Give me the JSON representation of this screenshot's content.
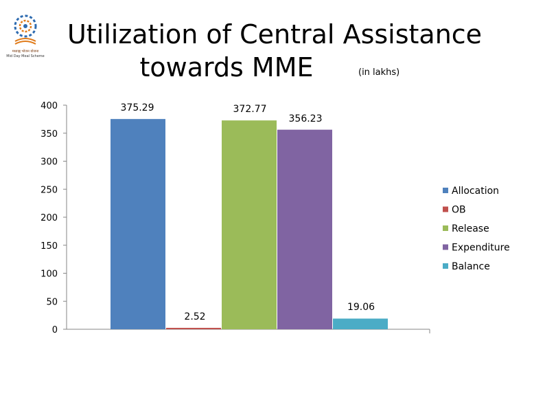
{
  "logo": {
    "line1": "मध्याह्न भोजन योजना",
    "line2": "Mid Day Meal Scheme"
  },
  "title": {
    "line1": "Utilization of Central Assistance",
    "line2": "towards MME",
    "unit": "(in lakhs)"
  },
  "chart_data": {
    "type": "bar",
    "title": "Utilization of Central Assistance towards MME",
    "unit": "(in lakhs)",
    "xlabel": "",
    "ylabel": "",
    "ylim": [
      0,
      400
    ],
    "yticks": [
      0,
      50,
      100,
      150,
      200,
      250,
      300,
      350,
      400
    ],
    "grid": false,
    "legend_position": "right",
    "series": [
      {
        "name": "Allocation",
        "value": 375.29,
        "label": "375.29",
        "color": "#4F81BD"
      },
      {
        "name": "OB",
        "value": 2.52,
        "label": "2.52",
        "color": "#C0504D"
      },
      {
        "name": "Release",
        "value": 372.77,
        "label": "372.77",
        "color": "#9BBB59"
      },
      {
        "name": "Expenditure",
        "value": 356.23,
        "label": "356.23",
        "color": "#8064A2"
      },
      {
        "name": "Balance",
        "value": 19.06,
        "label": "19.06",
        "color": "#4BACC6"
      }
    ]
  }
}
